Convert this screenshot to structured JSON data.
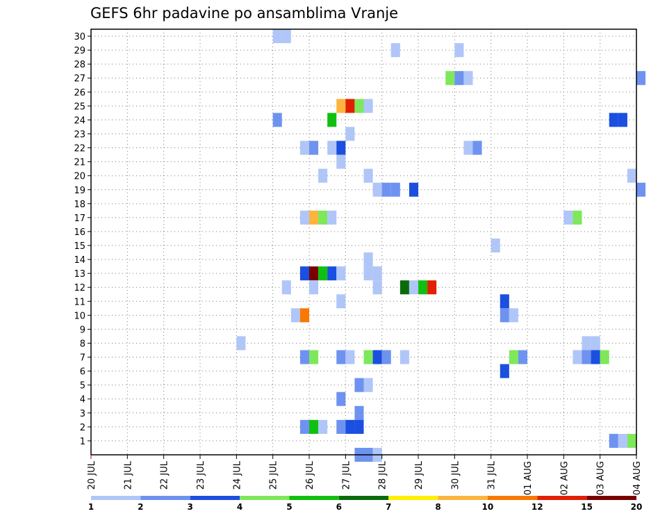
{
  "chart_data": {
    "type": "heatmap",
    "title": "GEFS 6hr padavine po ansamblima Vranje",
    "xlabel": "",
    "ylabel": "",
    "x_tick_labels": [
      "20 JUL",
      "21 JUL",
      "22 JUL",
      "23 JUL",
      "24 JUL",
      "25 JUL",
      "26 JUL",
      "27 JUL",
      "28 JUL",
      "29 JUL",
      "30 JUL",
      "31 JUL",
      "01 AUG",
      "02 AUG",
      "03 AUG",
      "04 AUG"
    ],
    "y_tick_labels": [
      "1",
      "2",
      "3",
      "4",
      "5",
      "6",
      "7",
      "8",
      "9",
      "10",
      "11",
      "12",
      "13",
      "14",
      "15",
      "16",
      "17",
      "18",
      "19",
      "20",
      "21",
      "22",
      "23",
      "24",
      "25",
      "26",
      "27",
      "28",
      "29",
      "30"
    ],
    "time_steps_per_day": 4,
    "ensemble_members": 30,
    "colorbar": {
      "labels": [
        "1",
        "2",
        "3",
        "4",
        "5",
        "6",
        "7",
        "8",
        "10",
        "12",
        "15",
        "20"
      ],
      "colors": [
        "#b0c6f8",
        "#6e92ef",
        "#1a4fe0",
        "#7ee85a",
        "#10c010",
        "#0b6b0b",
        "#fff000",
        "#fdb43e",
        "#f87800",
        "#e02000",
        "#7a0000"
      ]
    },
    "cells": [
      {
        "m": 30,
        "t": 20,
        "c": 0
      },
      {
        "m": 30,
        "t": 21,
        "c": 0
      },
      {
        "m": 29,
        "t": 33,
        "c": 0
      },
      {
        "m": 29,
        "t": 40,
        "c": 0
      },
      {
        "m": 27,
        "t": 39,
        "c": 3
      },
      {
        "m": 27,
        "t": 40,
        "c": 1
      },
      {
        "m": 27,
        "t": 41,
        "c": 0
      },
      {
        "m": 27,
        "t": 60,
        "c": 1
      },
      {
        "m": 25,
        "t": 27,
        "c": 7
      },
      {
        "m": 25,
        "t": 28,
        "c": 9
      },
      {
        "m": 25,
        "t": 29,
        "c": 3
      },
      {
        "m": 25,
        "t": 30,
        "c": 0
      },
      {
        "m": 24,
        "t": 20,
        "c": 1
      },
      {
        "m": 24,
        "t": 26,
        "c": 4
      },
      {
        "m": 24,
        "t": 57,
        "c": 2
      },
      {
        "m": 24,
        "t": 58,
        "c": 2
      },
      {
        "m": 23,
        "t": 28,
        "c": 0
      },
      {
        "m": 22,
        "t": 23,
        "c": 0
      },
      {
        "m": 22,
        "t": 24,
        "c": 1
      },
      {
        "m": 22,
        "t": 26,
        "c": 0
      },
      {
        "m": 22,
        "t": 27,
        "c": 2
      },
      {
        "m": 22,
        "t": 41,
        "c": 0
      },
      {
        "m": 22,
        "t": 42,
        "c": 1
      },
      {
        "m": 21,
        "t": 27,
        "c": 0
      },
      {
        "m": 20,
        "t": 25,
        "c": 0
      },
      {
        "m": 20,
        "t": 30,
        "c": 0
      },
      {
        "m": 20,
        "t": 59,
        "c": 0
      },
      {
        "m": 19,
        "t": 31,
        "c": 0
      },
      {
        "m": 19,
        "t": 32,
        "c": 1
      },
      {
        "m": 19,
        "t": 33,
        "c": 1
      },
      {
        "m": 19,
        "t": 35,
        "c": 2
      },
      {
        "m": 19,
        "t": 60,
        "c": 1
      },
      {
        "m": 17,
        "t": 23,
        "c": 0
      },
      {
        "m": 17,
        "t": 24,
        "c": 7
      },
      {
        "m": 17,
        "t": 25,
        "c": 3
      },
      {
        "m": 17,
        "t": 26,
        "c": 0
      },
      {
        "m": 17,
        "t": 52,
        "c": 0
      },
      {
        "m": 17,
        "t": 53,
        "c": 3
      },
      {
        "m": 15,
        "t": 44,
        "c": 0
      },
      {
        "m": 14,
        "t": 30,
        "c": 0
      },
      {
        "m": 13,
        "t": 23,
        "c": 2
      },
      {
        "m": 13,
        "t": 24,
        "c": 10
      },
      {
        "m": 13,
        "t": 25,
        "c": 4
      },
      {
        "m": 13,
        "t": 26,
        "c": 2
      },
      {
        "m": 13,
        "t": 27,
        "c": 0
      },
      {
        "m": 13,
        "t": 30,
        "c": 0
      },
      {
        "m": 13,
        "t": 31,
        "c": 0
      },
      {
        "m": 12,
        "t": 21,
        "c": 0
      },
      {
        "m": 12,
        "t": 24,
        "c": 0
      },
      {
        "m": 12,
        "t": 31,
        "c": 0
      },
      {
        "m": 12,
        "t": 34,
        "c": 5
      },
      {
        "m": 12,
        "t": 35,
        "c": 0
      },
      {
        "m": 12,
        "t": 36,
        "c": 4
      },
      {
        "m": 12,
        "t": 37,
        "c": 9
      },
      {
        "m": 11,
        "t": 27,
        "c": 0
      },
      {
        "m": 11,
        "t": 45,
        "c": 2
      },
      {
        "m": 10,
        "t": 22,
        "c": 0
      },
      {
        "m": 10,
        "t": 23,
        "c": 8
      },
      {
        "m": 10,
        "t": 45,
        "c": 1
      },
      {
        "m": 10,
        "t": 46,
        "c": 0
      },
      {
        "m": 8,
        "t": 16,
        "c": 0
      },
      {
        "m": 8,
        "t": 54,
        "c": 0
      },
      {
        "m": 8,
        "t": 55,
        "c": 0
      },
      {
        "m": 7,
        "t": 23,
        "c": 1
      },
      {
        "m": 7,
        "t": 24,
        "c": 3
      },
      {
        "m": 7,
        "t": 27,
        "c": 1
      },
      {
        "m": 7,
        "t": 28,
        "c": 0
      },
      {
        "m": 7,
        "t": 30,
        "c": 3
      },
      {
        "m": 7,
        "t": 31,
        "c": 2
      },
      {
        "m": 7,
        "t": 32,
        "c": 1
      },
      {
        "m": 7,
        "t": 34,
        "c": 0
      },
      {
        "m": 7,
        "t": 46,
        "c": 3
      },
      {
        "m": 7,
        "t": 47,
        "c": 1
      },
      {
        "m": 7,
        "t": 53,
        "c": 0
      },
      {
        "m": 7,
        "t": 54,
        "c": 1
      },
      {
        "m": 7,
        "t": 55,
        "c": 2
      },
      {
        "m": 7,
        "t": 56,
        "c": 3
      },
      {
        "m": 6,
        "t": 45,
        "c": 2
      },
      {
        "m": 5,
        "t": 29,
        "c": 1
      },
      {
        "m": 5,
        "t": 30,
        "c": 0
      },
      {
        "m": 4,
        "t": 27,
        "c": 1
      },
      {
        "m": 3,
        "t": 29,
        "c": 1
      },
      {
        "m": 2,
        "t": 23,
        "c": 1
      },
      {
        "m": 2,
        "t": 24,
        "c": 4
      },
      {
        "m": 2,
        "t": 25,
        "c": 0
      },
      {
        "m": 2,
        "t": 27,
        "c": 1
      },
      {
        "m": 2,
        "t": 28,
        "c": 2
      },
      {
        "m": 2,
        "t": 29,
        "c": 2
      },
      {
        "m": 1,
        "t": 57,
        "c": 1
      },
      {
        "m": 1,
        "t": 58,
        "c": 0
      },
      {
        "m": 1,
        "t": 59,
        "c": 3
      },
      {
        "m": 0,
        "t": 29,
        "c": 1
      },
      {
        "m": 0,
        "t": 30,
        "c": 1
      },
      {
        "m": 0,
        "t": 31,
        "c": 0
      }
    ]
  }
}
